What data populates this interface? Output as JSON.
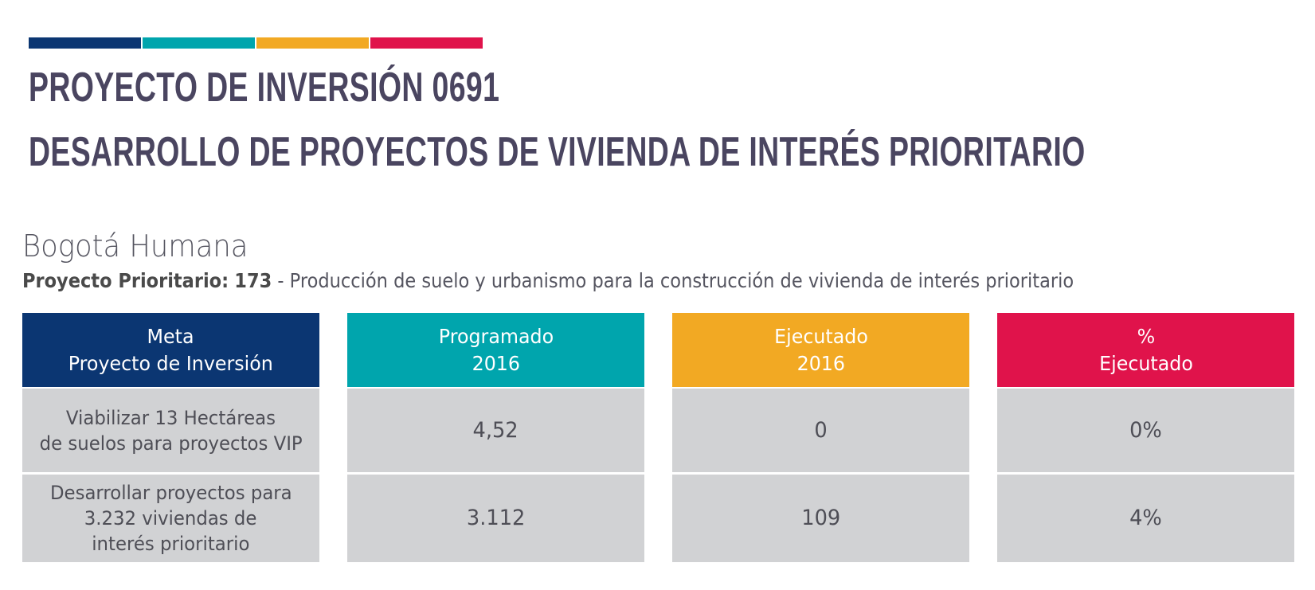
{
  "header": {
    "accent_colors": [
      "#0b3672",
      "#00a5ad",
      "#f2a923",
      "#e0134b"
    ],
    "title_line1": "PROYECTO DE INVERSIÓN 0691",
    "title_line2": "DESARROLLO DE PROYECTOS DE VIVIENDA DE INTERÉS PRIORITARIO"
  },
  "plan": {
    "name": "Bogotá Humana",
    "priority_label": "Proyecto Prioritario:",
    "priority_number": "173",
    "priority_description": " - Producción de suelo y urbanismo para la construcción de vivienda de interés prioritario"
  },
  "table": {
    "columns": [
      {
        "header_line1": "Meta",
        "header_line2": "Proyecto de Inversión",
        "color": "#0b3672"
      },
      {
        "header_line1": "Programado",
        "header_line2": "2016",
        "color": "#00a5ad"
      },
      {
        "header_line1": "Ejecutado",
        "header_line2": "2016",
        "color": "#f2a923"
      },
      {
        "header_line1": "%",
        "header_line2": "Ejecutado",
        "color": "#e0134b"
      }
    ],
    "rows": [
      {
        "meta_lines": [
          "Viabilizar 13 Hectáreas",
          "de suelos para proyectos VIP"
        ],
        "programado": "4,52",
        "ejecutado": "0",
        "porcentaje": "0%"
      },
      {
        "meta_lines": [
          "Desarrollar proyectos para",
          "3.232 viviendas de",
          "interés prioritario"
        ],
        "programado": "3.112",
        "ejecutado": "109",
        "porcentaje": "4%"
      }
    ]
  }
}
